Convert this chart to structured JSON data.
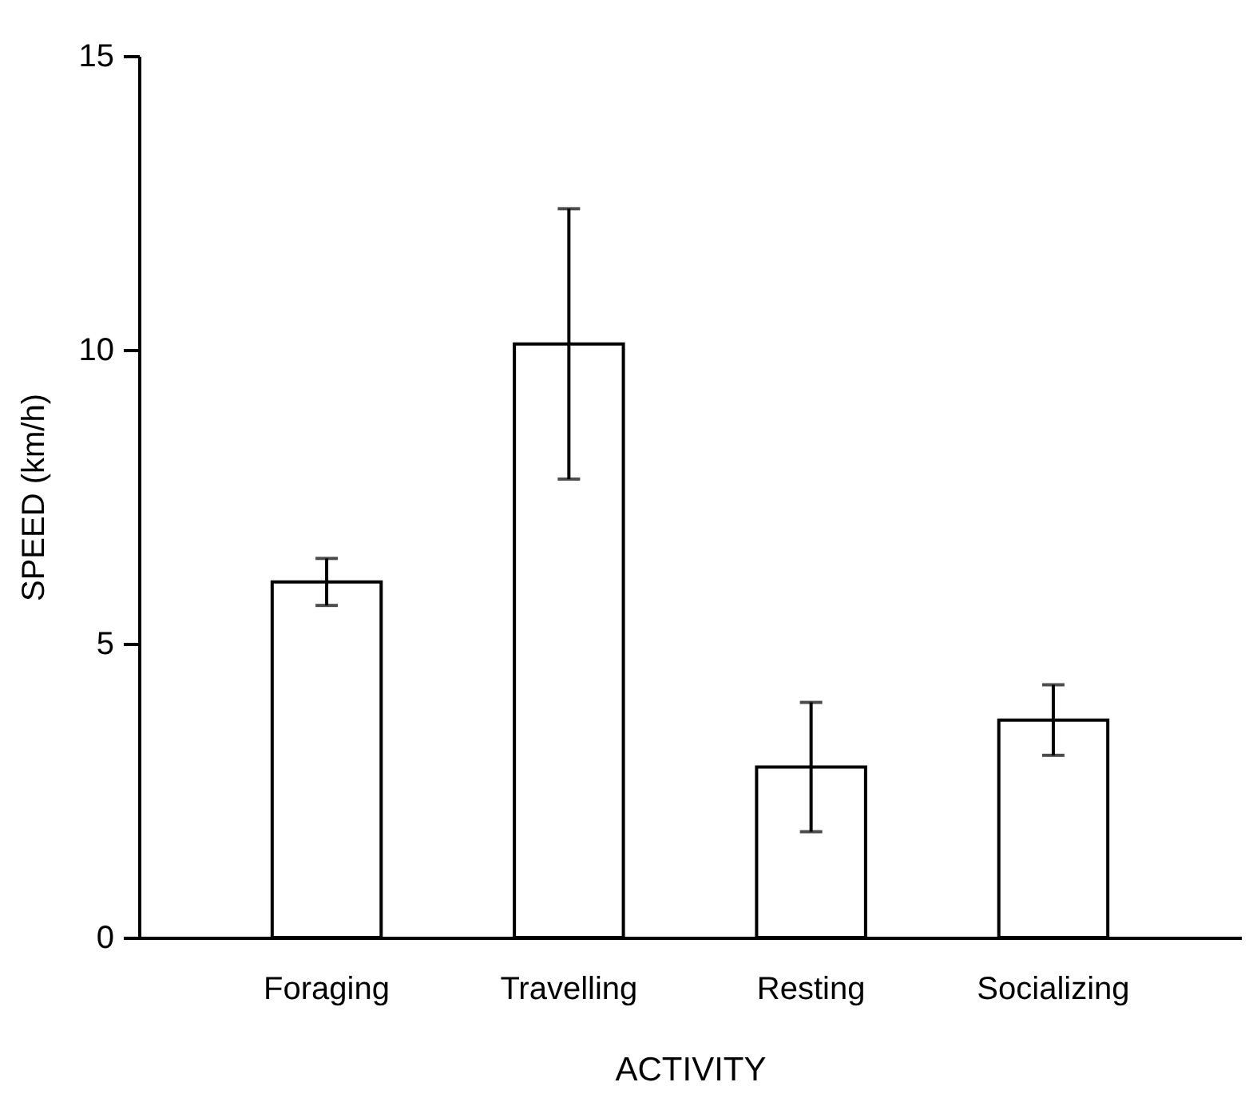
{
  "chart_data": {
    "type": "bar",
    "xlabel": "ACTIVITY",
    "ylabel": "SPEED  (km/h)",
    "categories": [
      "Foraging",
      "Travelling",
      "Resting",
      "Socializing"
    ],
    "values": [
      6.05,
      10.1,
      2.9,
      3.7
    ],
    "errors": [
      0.4,
      2.3,
      1.1,
      0.6
    ],
    "color": "#ffffff",
    "ylim": [
      0,
      15
    ],
    "yticks": [
      0,
      5,
      10,
      15
    ],
    "grid": false
  }
}
